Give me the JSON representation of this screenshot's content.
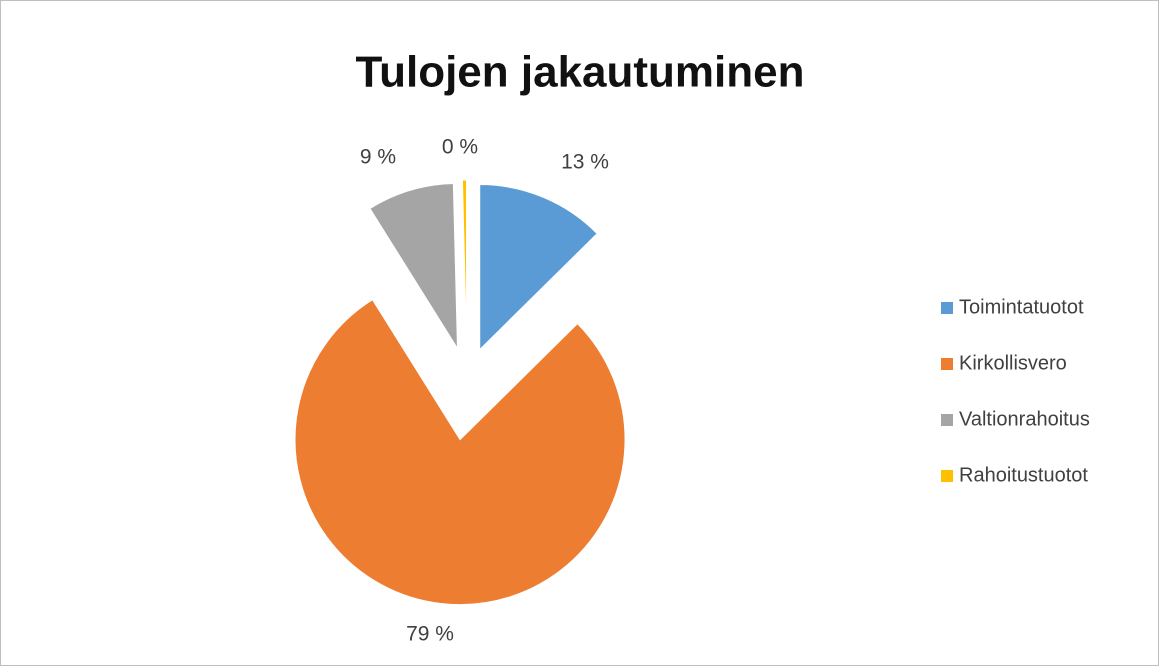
{
  "chart_data": {
    "type": "pie",
    "title": "Tulojen jakautuminen",
    "categories": [
      "Toimintatuotot",
      "Kirkollisvero",
      "Valtionrahoitus",
      "Rahoitustuotot"
    ],
    "values": [
      12.6,
      78.5,
      8.5,
      0.4
    ],
    "value_labels": [
      "13 %",
      "79 %",
      "9 %",
      "0 %"
    ],
    "colors": [
      "#5b9bd5",
      "#ed7d31",
      "#a5a5a5",
      "#ffc000"
    ],
    "legend": "right"
  }
}
